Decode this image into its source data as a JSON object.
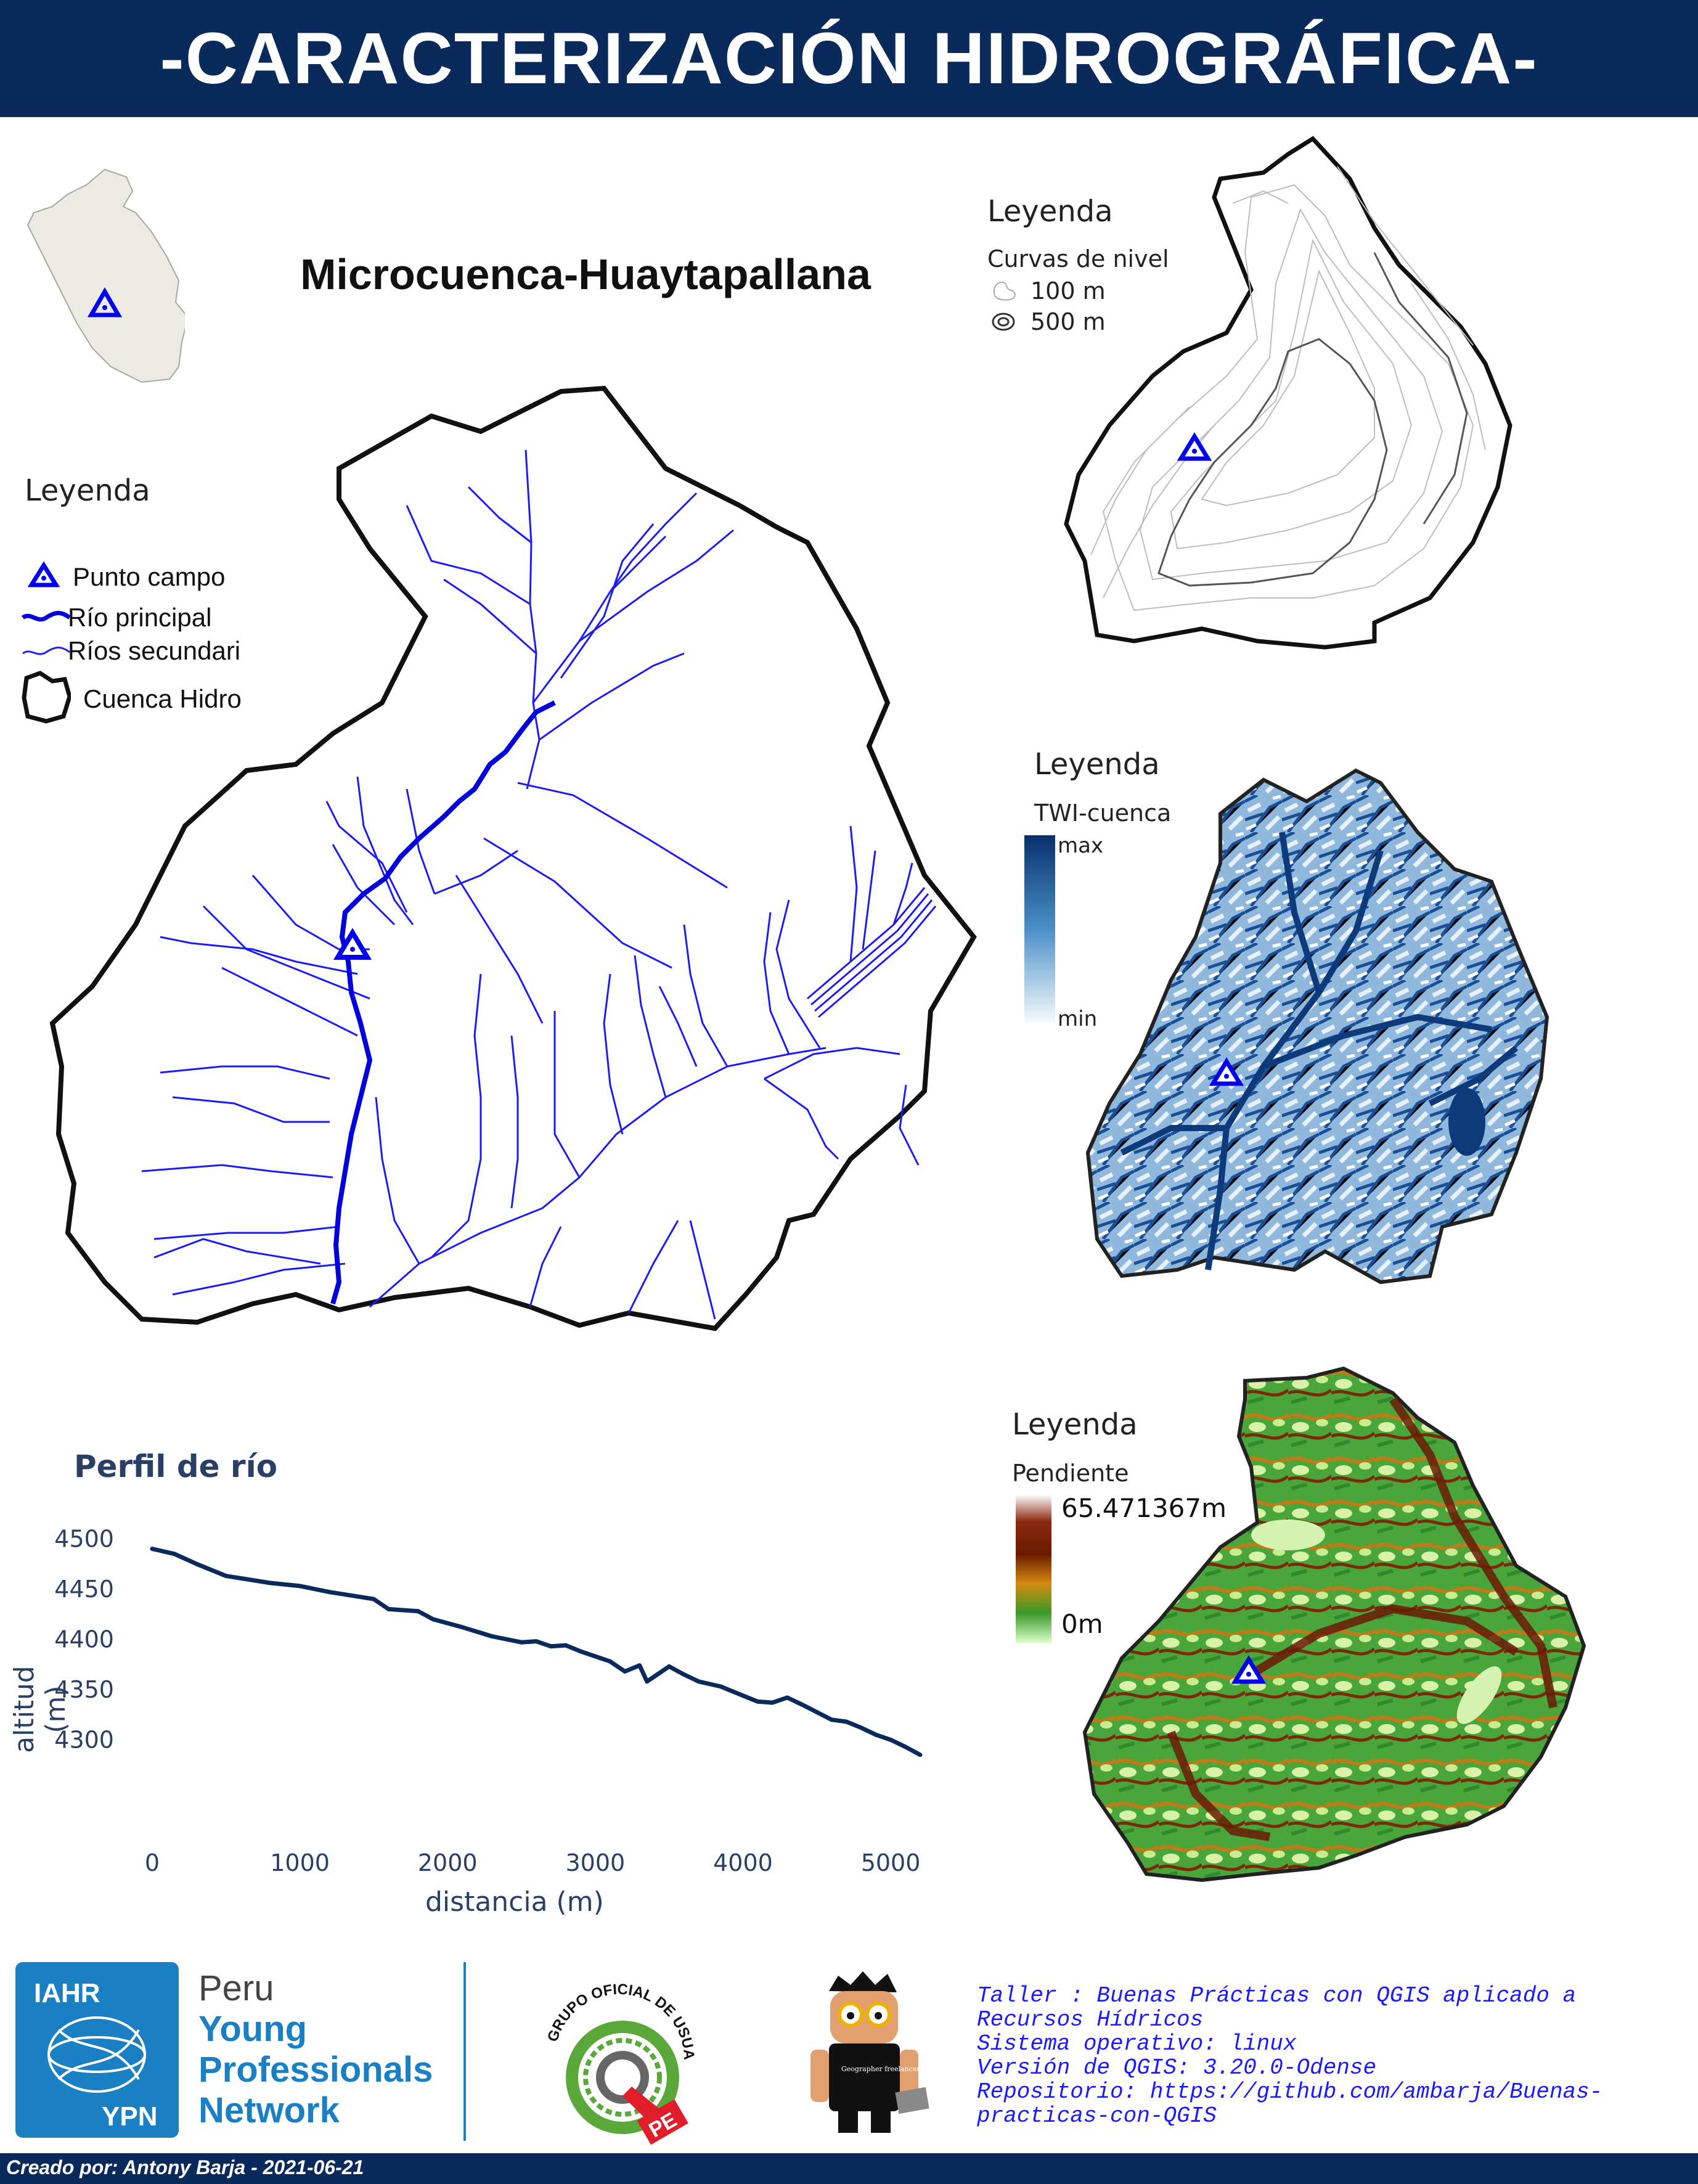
{
  "header": {
    "title": "-CARACTERIZACIÓN HIDROGRÁFICA-"
  },
  "main_map": {
    "title": "Microcuenca-Huaytapallana",
    "legend": {
      "title": "Leyenda",
      "items": [
        "Punto campo",
        "Río principal",
        "Ríos secundari",
        "Cuenca Hidro"
      ]
    }
  },
  "contour_map": {
    "legend_title": "Leyenda",
    "layer": "Curvas de nivel",
    "items": [
      "100 m",
      "500 m"
    ]
  },
  "twi_map": {
    "legend_title": "Leyenda",
    "layer": "TWI-cuenca",
    "max_label": "max",
    "min_label": "min"
  },
  "slope_map": {
    "legend_title": "Leyenda",
    "layer": "Pendiente",
    "max_label": "65.471367m",
    "min_label": "0m"
  },
  "chart_data": {
    "type": "line",
    "title": "Perfil de río",
    "xlabel": "distancia (m)",
    "ylabel": "altitud (m)",
    "xlim": [
      0,
      5200
    ],
    "ylim": [
      4280,
      4510
    ],
    "x_ticks": [
      "0",
      "1000",
      "2000",
      "3000",
      "4000",
      "5000"
    ],
    "y_ticks": [
      "4500",
      "4450",
      "4400",
      "4350",
      "4300"
    ],
    "grid": false,
    "series": [
      {
        "color": "#0b2a5c",
        "x": [
          0,
          150,
          300,
          500,
          800,
          1000,
          1200,
          1500,
          1600,
          1800,
          1900,
          2100,
          2300,
          2500,
          2600,
          2700,
          2800,
          2900,
          3100,
          3200,
          3300,
          3350,
          3400,
          3500,
          3600,
          3700,
          3850,
          4000,
          4100,
          4200,
          4300,
          4400,
          4600,
          4700,
          4800,
          4900,
          5000,
          5100,
          5200
        ],
        "y": [
          4490,
          4485,
          4475,
          4463,
          4456,
          4453,
          4447,
          4440,
          4430,
          4428,
          4420,
          4412,
          4403,
          4397,
          4398,
          4393,
          4394,
          4388,
          4378,
          4368,
          4374,
          4358,
          4363,
          4373,
          4365,
          4358,
          4353,
          4344,
          4338,
          4337,
          4342,
          4335,
          4320,
          4318,
          4312,
          4305,
          4300,
          4293,
          4285
        ]
      }
    ]
  },
  "footer": {
    "credit": "Creado por: Antony Barja - 2021-06-21",
    "info": [
      "Taller : Buenas Prácticas con QGIS aplicado a",
      "Recursos Hídricos",
      "Sistema operativo: linux",
      "Versión de QGIS: 3.20.0-Odense",
      "Repositorio: https://github.com/ambarja/Buenas-",
      "practicas-con-QGIS"
    ],
    "logo_iahr": {
      "top": "IAHR",
      "bottom": "YPN",
      "line1": "Peru",
      "line2": "Young",
      "line3": "Professionals",
      "line4": "Network"
    },
    "logo_qgis": {
      "arc_text": "GRUPO OFICIAL DE USUARIOS",
      "badge": "PE"
    },
    "logo_freelancer": {
      "shirt_text": "Geographer freelancer"
    }
  }
}
